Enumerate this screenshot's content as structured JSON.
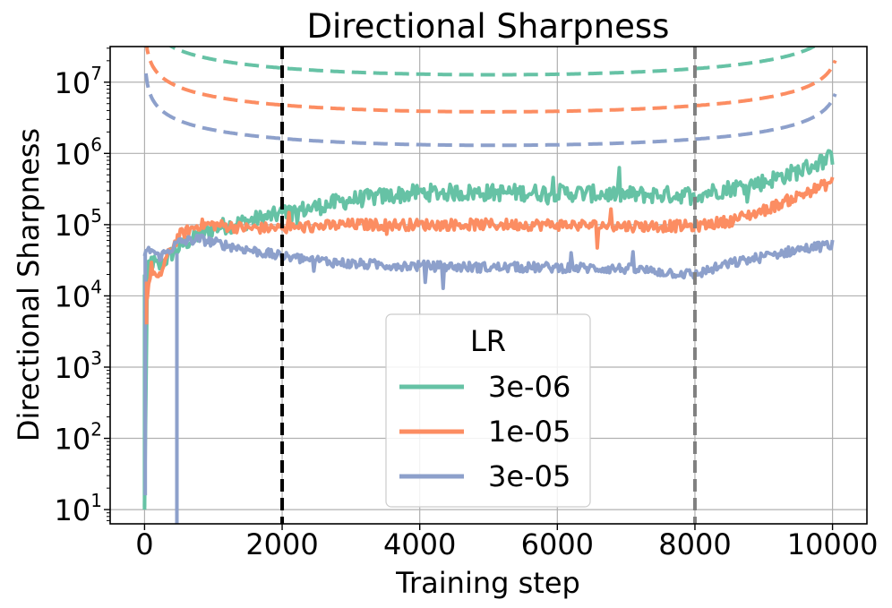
{
  "chart_data": {
    "type": "line",
    "title": "Directional Sharpness",
    "xlabel": "Training step",
    "ylabel": "Directional Sharpness",
    "y_scale": "log",
    "xlim": [
      -500,
      10500
    ],
    "ylim_log10": [
      0.8,
      7.5
    ],
    "x_ticks": [
      0,
      2000,
      4000,
      6000,
      8000,
      10000
    ],
    "x_tick_labels": [
      "0",
      "2000",
      "4000",
      "6000",
      "8000",
      "10000"
    ],
    "y_tick_exponents": [
      1,
      2,
      3,
      4,
      5,
      6,
      7
    ],
    "y_tick_base": "10",
    "grid": true,
    "vertical_markers": [
      {
        "x": 2000,
        "color": "#000000",
        "style": "dashed"
      },
      {
        "x": 8000,
        "color": "#808080",
        "style": "dashed"
      }
    ],
    "legend": {
      "title": "LR",
      "position": "lower-center"
    },
    "series": [
      {
        "name": "3e-06",
        "color": "#66c2a5",
        "solid_points": [
          [
            0,
            1.0
          ],
          [
            40,
            4.3
          ],
          [
            100,
            4.5
          ],
          [
            200,
            4.4
          ],
          [
            300,
            4.5
          ],
          [
            400,
            4.6
          ],
          [
            600,
            4.75
          ],
          [
            800,
            4.85
          ],
          [
            1000,
            4.95
          ],
          [
            1500,
            5.05
          ],
          [
            2000,
            5.15
          ],
          [
            3000,
            5.35
          ],
          [
            4000,
            5.45
          ],
          [
            5000,
            5.45
          ],
          [
            6000,
            5.45
          ],
          [
            7000,
            5.42
          ],
          [
            8000,
            5.42
          ],
          [
            9000,
            5.6
          ],
          [
            9500,
            5.75
          ],
          [
            10000,
            5.95
          ]
        ],
        "noise": 0.12,
        "bound_constant": 6.82
      },
      {
        "name": "1e-05",
        "color": "#fc8d62",
        "solid_points": [
          [
            0,
            3.8
          ],
          [
            100,
            4.4
          ],
          [
            200,
            4.2
          ],
          [
            300,
            4.5
          ],
          [
            500,
            4.85
          ],
          [
            800,
            5.0
          ],
          [
            1000,
            5.0
          ],
          [
            1500,
            4.95
          ],
          [
            2000,
            4.95
          ],
          [
            3000,
            5.0
          ],
          [
            4000,
            5.0
          ],
          [
            5000,
            5.0
          ],
          [
            6000,
            5.0
          ],
          [
            7000,
            4.98
          ],
          [
            8000,
            4.98
          ],
          [
            8500,
            5.05
          ],
          [
            9000,
            5.2
          ],
          [
            9500,
            5.4
          ],
          [
            10000,
            5.6
          ]
        ],
        "noise": 0.08,
        "bound_constant": 6.3
      },
      {
        "name": "3e-05",
        "color": "#8da0cb",
        "solid_points": [
          [
            0,
            4.6
          ],
          [
            100,
            4.65
          ],
          [
            200,
            4.55
          ],
          [
            300,
            4.6
          ],
          [
            500,
            4.75
          ],
          [
            800,
            4.8
          ],
          [
            1000,
            4.75
          ],
          [
            1500,
            4.65
          ],
          [
            2000,
            4.55
          ],
          [
            3000,
            4.45
          ],
          [
            4000,
            4.42
          ],
          [
            5000,
            4.4
          ],
          [
            6000,
            4.4
          ],
          [
            7000,
            4.38
          ],
          [
            8000,
            4.3
          ],
          [
            8500,
            4.45
          ],
          [
            9000,
            4.55
          ],
          [
            9500,
            4.65
          ],
          [
            10000,
            4.72
          ]
        ],
        "noise": 0.07,
        "bound_constant": 5.83
      }
    ]
  }
}
